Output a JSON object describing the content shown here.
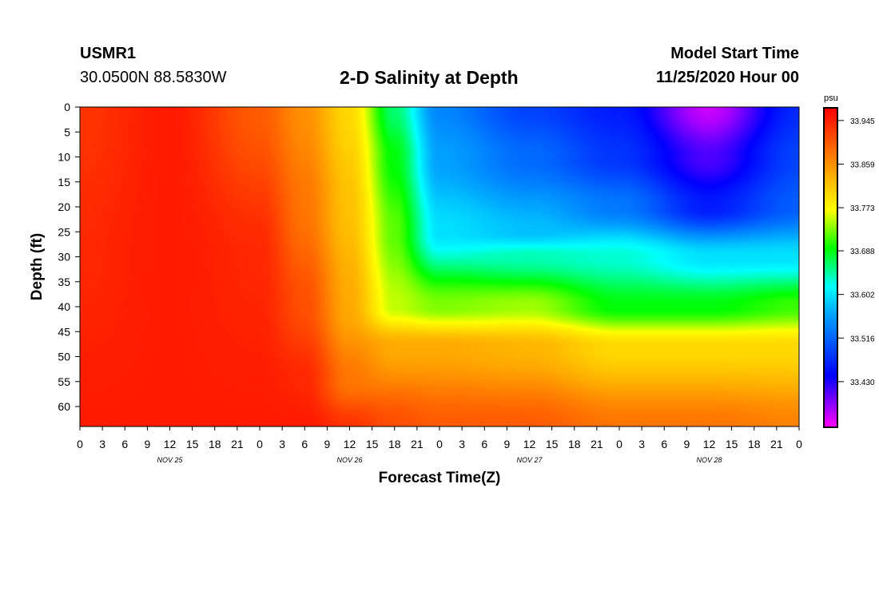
{
  "header": {
    "station": "USMR1",
    "coords": "30.0500N 88.5830W",
    "title": "2-D Salinity at Depth",
    "start_label": "Model Start Time",
    "start_time": "11/25/2020 Hour 00"
  },
  "chart_data": {
    "type": "heatmap",
    "title": "2-D Salinity at Depth",
    "xlabel": "Forecast Time(Z)",
    "ylabel": "Depth (ft)",
    "x_range_hours": [
      0,
      96
    ],
    "y_range_ft": [
      0,
      64
    ],
    "y_ticks": [
      0,
      5,
      10,
      15,
      20,
      25,
      30,
      35,
      40,
      45,
      50,
      55,
      60
    ],
    "x_tick_hours": [
      0,
      3,
      6,
      9,
      12,
      15,
      18,
      21,
      24,
      27,
      30,
      33,
      36,
      39,
      42,
      45,
      48,
      51,
      54,
      57,
      60,
      63,
      66,
      69,
      72,
      75,
      78,
      81,
      84,
      87,
      90,
      93,
      96
    ],
    "x_tick_labels": [
      "0",
      "3",
      "6",
      "9",
      "12",
      "15",
      "18",
      "21",
      "0",
      "3",
      "6",
      "9",
      "12",
      "15",
      "18",
      "21",
      "0",
      "3",
      "6",
      "9",
      "12",
      "15",
      "18",
      "21",
      "0",
      "3",
      "6",
      "9",
      "12",
      "15",
      "18",
      "21",
      "0"
    ],
    "date_labels": [
      {
        "text": "NOV 25",
        "hour": 12
      },
      {
        "text": "NOV 26",
        "hour": 36
      },
      {
        "text": "NOV 27",
        "hour": 60
      },
      {
        "text": "NOV 28",
        "hour": 84
      }
    ],
    "colorbar": {
      "unit": "psu",
      "min": 33.34,
      "max": 33.97,
      "tick_values": [
        33.945,
        33.859,
        33.773,
        33.688,
        33.602,
        33.516,
        33.43
      ],
      "tick_labels": [
        "33.945",
        "33.859",
        "33.773",
        "33.688",
        "33.602",
        "33.516",
        "33.430"
      ]
    },
    "field_description": "High salinity (~33.95 psu) at all depths through early Nov 26; a low-salinity surface layer develops from Nov 26 afternoon, reaching ~33.36 psu near the surface around 09Z Nov 28, with a halocline near 30-45 ft.",
    "profiles": [
      {
        "hour": 0,
        "depth": [
          0,
          30,
          64
        ],
        "salinity": [
          33.93,
          33.94,
          33.95
        ]
      },
      {
        "hour": 12,
        "depth": [
          0,
          30,
          64
        ],
        "salinity": [
          33.95,
          33.95,
          33.95
        ]
      },
      {
        "hour": 24,
        "depth": [
          0,
          30,
          64
        ],
        "salinity": [
          33.9,
          33.94,
          33.95
        ]
      },
      {
        "hour": 30,
        "depth": [
          0,
          20,
          40,
          55,
          64
        ],
        "salinity": [
          33.86,
          33.88,
          33.91,
          33.94,
          33.95
        ]
      },
      {
        "hour": 36,
        "depth": [
          0,
          20,
          40,
          55,
          64
        ],
        "salinity": [
          33.8,
          33.82,
          33.84,
          33.88,
          33.93
        ]
      },
      {
        "hour": 42,
        "depth": [
          0,
          10,
          25,
          40,
          48,
          64
        ],
        "salinity": [
          33.66,
          33.69,
          33.72,
          33.75,
          33.84,
          33.91
        ]
      },
      {
        "hour": 48,
        "depth": [
          0,
          10,
          25,
          40,
          48,
          64
        ],
        "salinity": [
          33.54,
          33.56,
          33.6,
          33.73,
          33.84,
          33.9
        ]
      },
      {
        "hour": 60,
        "depth": [
          0,
          10,
          25,
          30,
          40,
          48,
          64
        ],
        "salinity": [
          33.49,
          33.52,
          33.58,
          33.64,
          33.74,
          33.83,
          33.9
        ]
      },
      {
        "hour": 72,
        "depth": [
          0,
          10,
          20,
          30,
          40,
          48,
          64
        ],
        "salinity": [
          33.46,
          33.48,
          33.53,
          33.63,
          33.69,
          33.8,
          33.88
        ]
      },
      {
        "hour": 84,
        "depth": [
          0,
          10,
          20,
          30,
          40,
          48,
          64
        ],
        "salinity": [
          33.36,
          33.41,
          33.46,
          33.6,
          33.69,
          33.8,
          33.88
        ]
      },
      {
        "hour": 96,
        "depth": [
          0,
          10,
          20,
          30,
          40,
          48,
          64
        ],
        "salinity": [
          33.47,
          33.49,
          33.51,
          33.6,
          33.71,
          33.8,
          33.87
        ]
      }
    ]
  }
}
